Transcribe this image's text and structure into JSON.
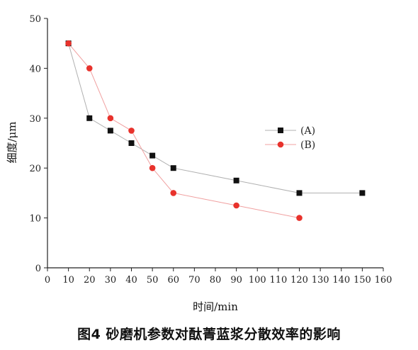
{
  "figure": {
    "caption": "图4  砂磨机参数对酞菁蓝浆分散效率的影响"
  },
  "chart_data": {
    "type": "line",
    "xlabel": "时间/min",
    "ylabel": "细度/μm",
    "xlim": [
      0,
      160
    ],
    "ylim": [
      0,
      50
    ],
    "x_ticks": [
      0,
      10,
      20,
      30,
      40,
      50,
      60,
      70,
      80,
      90,
      100,
      110,
      120,
      130,
      140,
      150,
      160
    ],
    "y_ticks": [
      0,
      10,
      20,
      30,
      40,
      50
    ],
    "grid": false,
    "legend_position": "right-middle",
    "series": [
      {
        "name": "(A)",
        "marker": "square",
        "color": "#111111",
        "line_color": "#b0b0b0",
        "x": [
          10,
          20,
          30,
          40,
          50,
          60,
          90,
          120,
          150
        ],
        "y": [
          45,
          30,
          27.5,
          25,
          22.5,
          20,
          17.5,
          15,
          15
        ]
      },
      {
        "name": "(B)",
        "marker": "circle",
        "color": "#e8322c",
        "line_color": "#f0a0a0",
        "x": [
          10,
          20,
          30,
          40,
          50,
          60,
          90,
          120
        ],
        "y": [
          45,
          40,
          30,
          27.5,
          20,
          15,
          12.5,
          10
        ]
      }
    ]
  }
}
